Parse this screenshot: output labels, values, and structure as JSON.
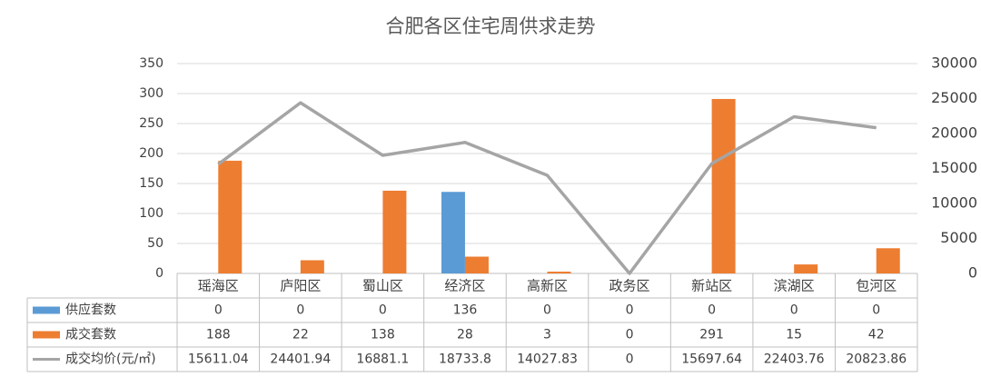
{
  "chart_data": {
    "type": "bar",
    "title": "合肥各区住宅周供求走势",
    "categories": [
      "瑶海区",
      "庐阳区",
      "蜀山区",
      "经济区",
      "高新区",
      "政务区",
      "新站区",
      "滨湖区",
      "包河区"
    ],
    "series": [
      {
        "name": "供应套数",
        "color": "#5b9bd5",
        "type": "bar",
        "values": [
          0,
          0,
          0,
          136,
          0,
          0,
          0,
          0,
          0
        ]
      },
      {
        "name": "成交套数",
        "color": "#ed7d31",
        "type": "bar",
        "values": [
          188,
          22,
          138,
          28,
          3,
          0,
          291,
          15,
          42
        ]
      },
      {
        "name": "成交均价(元/㎡)",
        "color": "#a5a5a5",
        "type": "line",
        "axis": "y2",
        "values": [
          15611.04,
          24401.94,
          16881.1,
          18733.8,
          14027.83,
          0,
          15697.64,
          22403.76,
          20823.86
        ]
      }
    ],
    "ylim": [
      0,
      350
    ],
    "yticks": [
      0,
      50,
      100,
      150,
      200,
      250,
      300,
      350
    ],
    "y2lim": [
      0,
      30000
    ],
    "y2ticks": [
      0,
      5000,
      10000,
      15000,
      20000,
      25000,
      30000
    ],
    "grid": true
  }
}
